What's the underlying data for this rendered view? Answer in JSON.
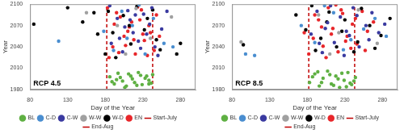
{
  "chart_data": [
    {
      "type": "scatter",
      "annotation": "RCP 4.5",
      "xlabel": "Day of the Year",
      "ylabel": "Year",
      "xlim": [
        80,
        300
      ],
      "xticks": [
        80,
        130,
        180,
        230,
        280
      ],
      "ylim": [
        1980,
        2100
      ],
      "yticks": [
        1980,
        2010,
        2040,
        2070,
        2100
      ],
      "grid": false,
      "legend": "bottom",
      "marker": "circle",
      "series": [
        {
          "name": "BL",
          "color": "#5fb043",
          "x": [
            186,
            192,
            197,
            203,
            208,
            214,
            219,
            224,
            229,
            233,
            238,
            243,
            189,
            200,
            211,
            222,
            235,
            241,
            195,
            206,
            216,
            227,
            238
          ],
          "values": [
            1998,
            1988,
            2003,
            1992,
            1985,
            1999,
            1990,
            2004,
            1987,
            1996,
            1993,
            2001,
            1991,
            1997,
            2002,
            1986,
            1999,
            1989,
            1994,
            1983,
            1995,
            2000,
            1988
          ]
        },
        {
          "name": "C-D",
          "color": "#4a8ed0",
          "x": [
            118,
            178,
            191,
            209,
            225,
            244,
            258,
            270,
            202,
            233,
            216
          ],
          "values": [
            2048,
            2062,
            2035,
            2052,
            2099,
            2080,
            2045,
            2040,
            2090,
            2030,
            2070
          ]
        },
        {
          "name": "C-W",
          "color": "#3a3aa0",
          "x": [
            188,
            196,
            203,
            210,
            217,
            224,
            231,
            239,
            246,
            255,
            186,
            199,
            213,
            227,
            242,
            250,
            206,
            220,
            235,
            262
          ],
          "values": [
            2045,
            2080,
            2033,
            2091,
            2060,
            2048,
            2086,
            2072,
            2040,
            2065,
            2098,
            2052,
            2078,
            2038,
            2095,
            2028,
            2068,
            2085,
            2058,
            2090
          ]
        },
        {
          "name": "W-W",
          "color": "#a0a0a0",
          "x": [
            155,
            196,
            221,
            240,
            207,
            268
          ],
          "values": [
            2088,
            2070,
            2094,
            2052,
            2030,
            2082
          ]
        },
        {
          "name": "W-D",
          "color": "#000000",
          "x": [
            85,
            130,
            150,
            170,
            180,
            184,
            194,
            204,
            214,
            222,
            232,
            243,
            253,
            275,
            280,
            190,
            236,
            248,
            165,
            212
          ],
          "values": [
            2072,
            2095,
            2075,
            2058,
            2030,
            2090,
            2025,
            2084,
            2044,
            2097,
            2064,
            2092,
            2036,
            2030,
            2045,
            2060,
            2080,
            2050,
            2088,
            2070
          ]
        },
        {
          "name": "EN",
          "color": "#e8262a",
          "x": [
            185,
            190,
            198,
            205,
            212,
            220,
            226,
            232,
            240,
            248,
            183,
            195,
            207,
            215,
            223,
            230,
            238,
            245,
            200,
            218,
            228,
            236,
            210,
            192,
            252
          ],
          "values": [
            2025,
            2040,
            2032,
            2055,
            2068,
            2030,
            2078,
            2049,
            2060,
            2085,
            2095,
            2088,
            2042,
            2075,
            2096,
            2058,
            2070,
            2035,
            2082,
            2050,
            2092,
            2028,
            2062,
            2072,
            2055
          ]
        },
        {
          "name": "Start-July",
          "type": "line",
          "line_style": "dashed",
          "color": "#c00000",
          "x": [
            182,
            182
          ],
          "values": [
            1980,
            2100
          ]
        },
        {
          "name": "End-Aug",
          "type": "line",
          "line_style": "dashed",
          "color": "#c00000",
          "x": [
            243,
            243
          ],
          "values": [
            1980,
            2100
          ]
        }
      ]
    },
    {
      "type": "scatter",
      "annotation": "RCP 8.5",
      "xlabel": "Day of the Year",
      "ylabel": "Year",
      "xlim": [
        80,
        300
      ],
      "xticks": [
        80,
        130,
        180,
        230,
        280
      ],
      "ylim": [
        1980,
        2100
      ],
      "yticks": [
        1980,
        2010,
        2040,
        2070,
        2100
      ],
      "grid": false,
      "legend": "bottom",
      "marker": "circle",
      "series": [
        {
          "name": "BL",
          "color": "#5fb043",
          "x": [
            183,
            190,
            196,
            201,
            207,
            212,
            218,
            223,
            229,
            234,
            239,
            244,
            187,
            199,
            210,
            221,
            232,
            242,
            194,
            215,
            226,
            237
          ],
          "values": [
            1990,
            2002,
            1985,
            1996,
            2006,
            1988,
            1999,
            1983,
            1993,
            2004,
            1987,
            1997,
            1998,
            1990,
            2001,
            1995,
            1984,
            1992,
            2005,
            1986,
            2003,
            1989
          ]
        },
        {
          "name": "C-D",
          "color": "#4a8ed0",
          "x": [
            98,
            110,
            172,
            190,
            215,
            238,
            255,
            270,
            285,
            203,
            228
          ],
          "values": [
            2030,
            2028,
            2070,
            2046,
            2088,
            2050,
            2065,
            2080,
            2055,
            2098,
            2036
          ]
        },
        {
          "name": "C-W",
          "color": "#3a3aa0",
          "x": [
            185,
            193,
            200,
            207,
            216,
            224,
            232,
            241,
            249,
            258,
            266,
            275,
            196,
            211,
            229,
            246,
            262,
            283,
            204,
            236
          ],
          "values": [
            2058,
            2090,
            2032,
            2074,
            2046,
            2082,
            2062,
            2095,
            2040,
            2070,
            2088,
            2060,
            2045,
            2098,
            2028,
            2084,
            2050,
            2072,
            2066,
            2056
          ]
        },
        {
          "name": "W-W",
          "color": "#a0a0a0",
          "x": [
            92,
            195,
            222,
            248,
            273,
            210
          ],
          "values": [
            2047,
            2085,
            2060,
            2092,
            2045,
            2030
          ]
        },
        {
          "name": "W-D",
          "color": "#000000",
          "x": [
            95,
            165,
            178,
            186,
            198,
            209,
            219,
            230,
            242,
            252,
            263,
            278,
            290,
            191,
            226,
            247,
            270,
            206
          ],
          "values": [
            2043,
            2085,
            2064,
            2098,
            2052,
            2089,
            2040,
            2078,
            2033,
            2094,
            2070,
            2056,
            2080,
            2035,
            2062,
            2047,
            2038,
            2075
          ]
        },
        {
          "name": "EN",
          "color": "#e8262a",
          "x": [
            182,
            188,
            195,
            201,
            208,
            214,
            221,
            227,
            233,
            240,
            246,
            253,
            260,
            190,
            205,
            218,
            231,
            244,
            257,
            199,
            212,
            225,
            238,
            268,
            176
          ],
          "values": [
            2030,
            2052,
            2078,
            2041,
            2095,
            2066,
            2033,
            2087,
            2055,
            2072,
            2044,
            2090,
            2062,
            2085,
            2025,
            2099,
            2048,
            2080,
            2035,
            2068,
            2058,
            2092,
            2038,
            2075,
            2060
          ]
        },
        {
          "name": "Start-July",
          "type": "line",
          "line_style": "dashed",
          "color": "#c00000",
          "x": [
            182,
            182
          ],
          "values": [
            1980,
            2100
          ]
        },
        {
          "name": "End-Aug",
          "type": "line",
          "line_style": "dashed",
          "color": "#c00000",
          "x": [
            243,
            243
          ],
          "values": [
            1980,
            2100
          ]
        }
      ]
    }
  ]
}
